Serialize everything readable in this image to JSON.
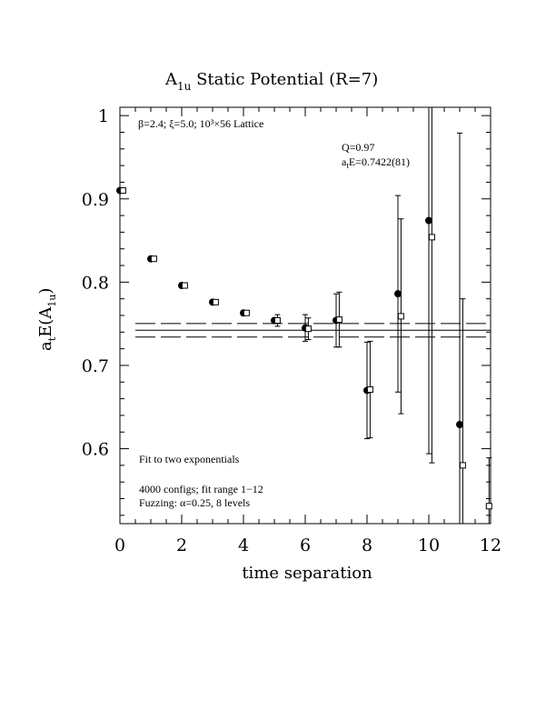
{
  "chart_data": {
    "type": "scatter",
    "title_main": "A",
    "title_sub": "1u",
    "title_rest": " Static Potential (R=7)",
    "xlabel": "time separation",
    "ylabel_a": "a",
    "ylabel_t": "t",
    "ylabel_e": "E(A",
    "ylabel_sub": "1u",
    "ylabel_close": ")",
    "xlim": [
      0,
      12
    ],
    "ylim": [
      0.51,
      1.01
    ],
    "x_ticks": [
      "0",
      "2",
      "4",
      "6",
      "8",
      "10",
      "12"
    ],
    "y_ticks": [
      "0.6",
      "0.7",
      "0.8",
      "0.9",
      "1"
    ],
    "annotations": {
      "lattice": "β=2.4; ξ=5.0; 10³×56 Lattice",
      "q": "Q=0.97",
      "ate_a": "a",
      "ate_t": "t",
      "ate_rest": "E=0.7422(81)",
      "fit_title": "Fit to two exponentials",
      "configs": "4000 configs; fit range 1−12",
      "fuzzing": "Fuzzing: α=0.25, 8 levels"
    },
    "fit": {
      "value": 0.7422,
      "error": 0.0081,
      "x_range": [
        0.5,
        12
      ]
    },
    "series": [
      {
        "marker": "filled-circle",
        "points": [
          {
            "x": 0,
            "y": 0.91,
            "err": 0.0
          },
          {
            "x": 1,
            "y": 0.828,
            "err": 0.0
          },
          {
            "x": 2,
            "y": 0.796,
            "err": 0.0
          },
          {
            "x": 3,
            "y": 0.776,
            "err": 0.0
          },
          {
            "x": 4,
            "y": 0.763,
            "err": 0.0
          },
          {
            "x": 5,
            "y": 0.754,
            "err": 0.0
          },
          {
            "x": 6,
            "y": 0.745,
            "err": 0.016
          },
          {
            "x": 7,
            "y": 0.754,
            "err": 0.032
          },
          {
            "x": 8,
            "y": 0.67,
            "err": 0.058
          },
          {
            "x": 9,
            "y": 0.786,
            "err": 0.118
          },
          {
            "x": 10,
            "y": 0.874,
            "err": 0.28
          },
          {
            "x": 11,
            "y": 0.629,
            "err": 0.35
          }
        ]
      },
      {
        "marker": "open-square",
        "points": [
          {
            "x": 0.1,
            "y": 0.91,
            "err": 0.0
          },
          {
            "x": 1.1,
            "y": 0.828,
            "err": 0.0
          },
          {
            "x": 2.1,
            "y": 0.796,
            "err": 0.0
          },
          {
            "x": 3.1,
            "y": 0.776,
            "err": 0.0
          },
          {
            "x": 4.1,
            "y": 0.763,
            "err": 0.0
          },
          {
            "x": 5.1,
            "y": 0.754,
            "err": 0.007
          },
          {
            "x": 6.1,
            "y": 0.744,
            "err": 0.013
          },
          {
            "x": 7.1,
            "y": 0.755,
            "err": 0.033
          },
          {
            "x": 8.1,
            "y": 0.671,
            "err": 0.058
          },
          {
            "x": 9.1,
            "y": 0.759,
            "err": 0.117
          },
          {
            "x": 10.1,
            "y": 0.854,
            "err": 0.271
          },
          {
            "x": 11.1,
            "y": 0.58,
            "err": 0.2
          },
          {
            "x": 11.95,
            "y": 0.531,
            "err": 0.058
          }
        ]
      }
    ]
  }
}
